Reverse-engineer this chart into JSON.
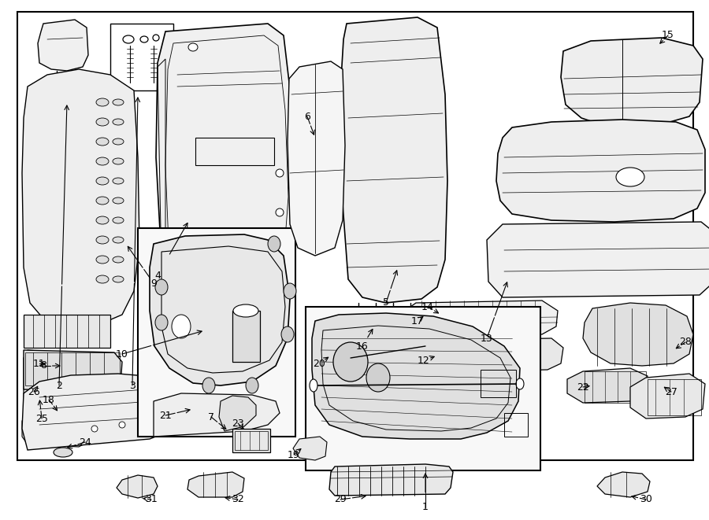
{
  "bg_color": "#ffffff",
  "border_color": "#000000",
  "line_color": "#000000",
  "fig_width": 9.0,
  "fig_height": 6.61,
  "dpi": 100
}
